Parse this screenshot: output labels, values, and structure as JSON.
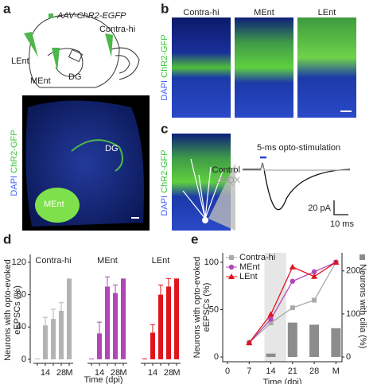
{
  "panel_labels": [
    "a",
    "b",
    "c",
    "d",
    "e"
  ],
  "panel_a": {
    "injection": "AAV-ChR2-EGFP",
    "schematic_labels": [
      "Contra-hi",
      "LEnt",
      "MEnt",
      "DG"
    ],
    "image_stain": [
      "DAPI",
      "ChR2-GFP"
    ],
    "image_labels": [
      "DG",
      "MEnt"
    ]
  },
  "panel_b": {
    "columns": [
      "Contra-hi",
      "MEnt",
      "LEnt"
    ],
    "stain": [
      "DAPI",
      "ChR2-GFP"
    ]
  },
  "panel_c": {
    "stain": [
      "DAPI",
      "ChR2-GFP"
    ],
    "stimulus": "5-ms opto-stimulation",
    "traces": [
      "Control",
      "CNQX"
    ],
    "scale_y": "20 pA",
    "scale_x": "10 ms"
  },
  "panel_d": {
    "ylabel": [
      "Neurons with opto-evoked",
      "eEPSCs (%)"
    ],
    "xlabel": "Time (dpi)"
  },
  "chart_data": [
    {
      "type": "bar",
      "title": "Contra-hi",
      "categories": [
        null,
        "14",
        null,
        "28",
        "M"
      ],
      "values": [
        1,
        42,
        50,
        60,
        100
      ],
      "errors": [
        null,
        10,
        12,
        10,
        null
      ],
      "color": "#b3b3b3",
      "ylim": [
        -5,
        120
      ],
      "yticks": [
        0,
        40,
        80,
        120
      ]
    },
    {
      "type": "bar",
      "title": "MEnt",
      "categories": [
        null,
        "14",
        null,
        "28",
        "M"
      ],
      "values": [
        1,
        32,
        90,
        82,
        100
      ],
      "errors": [
        null,
        14,
        12,
        10,
        null
      ],
      "color": "#b246b8",
      "ylim": [
        -5,
        120
      ]
    },
    {
      "type": "bar",
      "title": "LEnt",
      "categories": [
        null,
        "14",
        null,
        "28",
        "M"
      ],
      "values": [
        1,
        33,
        80,
        90,
        100
      ],
      "errors": [
        null,
        10,
        12,
        10,
        null
      ],
      "color": "#e0141c",
      "ylim": [
        -5,
        120
      ]
    },
    {
      "type": "line",
      "ylabel": [
        "Neurons with opto-evoked",
        "eEPSCs (%)"
      ],
      "xlabel": "Time (dpi)",
      "categories": [
        "0",
        "7",
        "14",
        "21",
        "28",
        "M"
      ],
      "ylim": [
        -5,
        110
      ],
      "yticks": [
        0,
        50,
        100
      ],
      "y2lim": [
        -11,
        242
      ],
      "y2ticks": [
        0,
        100,
        200
      ],
      "series": [
        {
          "name": "Contra-hi",
          "color": "#aaaaaa",
          "marker": "square",
          "values": [
            null,
            15,
            36,
            52,
            60,
            100
          ]
        },
        {
          "name": "MEnt",
          "color": "#b246b8",
          "marker": "circle",
          "values": [
            null,
            15,
            40,
            80,
            90,
            100
          ]
        },
        {
          "name": "LEnt",
          "color": "#e0141c",
          "marker": "triangle",
          "values": [
            null,
            15,
            45,
            95,
            85,
            100
          ]
        },
        {
          "name": "Neurons with cilia (%)",
          "color": "#8c8c8c",
          "axis": "y2",
          "values": [
            null,
            null,
            8,
            80,
            75,
            67
          ]
        }
      ]
    }
  ]
}
